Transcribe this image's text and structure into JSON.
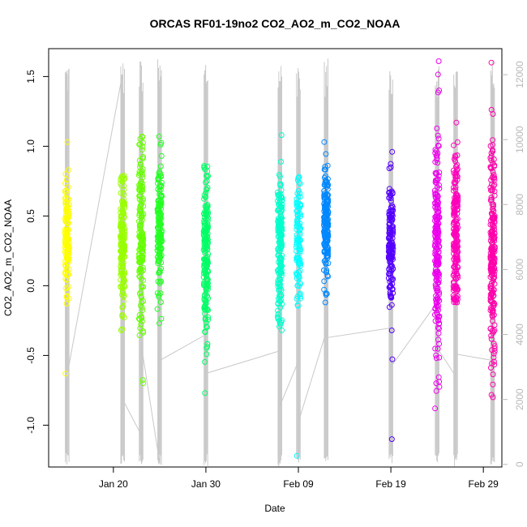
{
  "chart_data": {
    "type": "scatter",
    "title": "ORCAS RF01-19no2 CO2_AO2_m_CO2_NOAA",
    "xlabel": "Date",
    "ylabel": "CO2_AO2_m_CO2_NOAA",
    "x_axis": {
      "type": "date",
      "range": [
        "2016-01-13",
        "2016-03-02"
      ],
      "ticks": [
        {
          "date": "2016-01-20",
          "label": "Jan 20"
        },
        {
          "date": "2016-01-30",
          "label": "Jan 30"
        },
        {
          "date": "2016-02-09",
          "label": "Feb 09"
        },
        {
          "date": "2016-02-19",
          "label": "Feb 19"
        },
        {
          "date": "2016-02-29",
          "label": "Feb 29"
        }
      ]
    },
    "y_left": {
      "range": [
        -1.3,
        1.7
      ],
      "ticks": [
        {
          "value": -1.0,
          "label": "-1.0"
        },
        {
          "value": -0.5,
          "label": "-0.5"
        },
        {
          "value": 0.0,
          "label": "0.0"
        },
        {
          "value": 0.5,
          "label": "0.5"
        },
        {
          "value": 1.0,
          "label": "1.0"
        },
        {
          "value": 1.5,
          "label": "1.5"
        }
      ]
    },
    "y_right": {
      "range": [
        -80,
        12800
      ],
      "color": "#b8b8b8",
      "ticks": [
        {
          "value": 0,
          "label": "0"
        },
        {
          "value": 2000,
          "label": "2000"
        },
        {
          "value": 4000,
          "label": "4000"
        },
        {
          "value": 6000,
          "label": "6000"
        },
        {
          "value": 8000,
          "label": "8000"
        },
        {
          "value": 10000,
          "label": "10000"
        },
        {
          "value": 12000,
          "label": "12000"
        }
      ]
    },
    "grid": false,
    "legend": "none",
    "altitude_line_color": "#c8c8c8",
    "flights": [
      {
        "date": "2016-01-15",
        "color": "#ffff00",
        "mean": 0.33,
        "sd": 0.2,
        "min": -0.63,
        "max": 1.03,
        "n": 130
      },
      {
        "date": "2016-01-21",
        "color": "#99ff00",
        "mean": 0.3,
        "sd": 0.25,
        "min": -0.32,
        "max": 0.79,
        "n": 170
      },
      {
        "date": "2016-01-23",
        "color": "#66ff00",
        "mean": 0.35,
        "sd": 0.32,
        "min": -0.7,
        "max": 1.07,
        "n": 160
      },
      {
        "date": "2016-01-25",
        "color": "#22ff22",
        "mean": 0.4,
        "sd": 0.25,
        "min": -0.27,
        "max": 1.07,
        "n": 150
      },
      {
        "date": "2016-01-30",
        "color": "#00ff66",
        "mean": 0.18,
        "sd": 0.3,
        "min": -0.77,
        "max": 0.86,
        "n": 190
      },
      {
        "date": "2016-02-07",
        "color": "#00ffcc",
        "mean": 0.28,
        "sd": 0.28,
        "min": -0.32,
        "max": 1.08,
        "n": 170
      },
      {
        "date": "2016-02-09",
        "color": "#00ffff",
        "mean": 0.35,
        "sd": 0.22,
        "min": -1.22,
        "max": 0.78,
        "n": 110
      },
      {
        "date": "2016-02-12",
        "color": "#0088ff",
        "mean": 0.42,
        "sd": 0.2,
        "min": -0.12,
        "max": 1.03,
        "n": 190
      },
      {
        "date": "2016-02-19",
        "color": "#5500ff",
        "mean": 0.3,
        "sd": 0.22,
        "min": -1.1,
        "max": 0.96,
        "n": 160
      },
      {
        "date": "2016-02-24",
        "color": "#ee00ee",
        "mean": 0.3,
        "sd": 0.4,
        "min": -0.88,
        "max": 1.61,
        "n": 220
      },
      {
        "date": "2016-02-26",
        "color": "#ff00bb",
        "mean": 0.35,
        "sd": 0.3,
        "min": -0.12,
        "max": 1.17,
        "n": 200
      },
      {
        "date": "2016-03-01",
        "color": "#ff00aa",
        "mean": 0.2,
        "sd": 0.38,
        "min": -0.8,
        "max": 1.6,
        "n": 220
      }
    ],
    "altitude_path": [
      [
        "2016-01-15",
        0
      ],
      [
        "2016-01-15",
        12000
      ],
      [
        "2016-01-15",
        2800
      ],
      [
        "2016-01-21",
        12000
      ],
      [
        "2016-01-21",
        2000
      ],
      [
        "2016-01-23",
        900
      ],
      [
        "2016-01-23",
        12400
      ],
      [
        "2016-01-23",
        3700
      ],
      [
        "2016-01-25",
        0
      ],
      [
        "2016-01-25",
        11600
      ],
      [
        "2016-01-25",
        3200
      ],
      [
        "2016-01-30",
        4000
      ],
      [
        "2016-01-30",
        12300
      ],
      [
        "2016-01-30",
        2800
      ],
      [
        "2016-02-07",
        3500
      ],
      [
        "2016-02-07",
        11800
      ],
      [
        "2016-02-07",
        1800
      ],
      [
        "2016-02-09",
        3200
      ],
      [
        "2016-02-09",
        12200
      ],
      [
        "2016-02-09",
        1300
      ],
      [
        "2016-02-12",
        4100
      ],
      [
        "2016-02-12",
        11700
      ],
      [
        "2016-02-12",
        3900
      ],
      [
        "2016-02-19",
        4200
      ],
      [
        "2016-02-19",
        11900
      ],
      [
        "2016-02-19",
        3000
      ],
      [
        "2016-02-24",
        5000
      ],
      [
        "2016-02-24",
        11800
      ],
      [
        "2016-02-24",
        3600
      ],
      [
        "2016-02-26",
        2700
      ],
      [
        "2016-02-26",
        11200
      ],
      [
        "2016-02-26",
        3400
      ],
      [
        "2016-03-01",
        3200
      ],
      [
        "2016-03-01",
        12400
      ],
      [
        "2016-03-01",
        1200
      ]
    ]
  }
}
